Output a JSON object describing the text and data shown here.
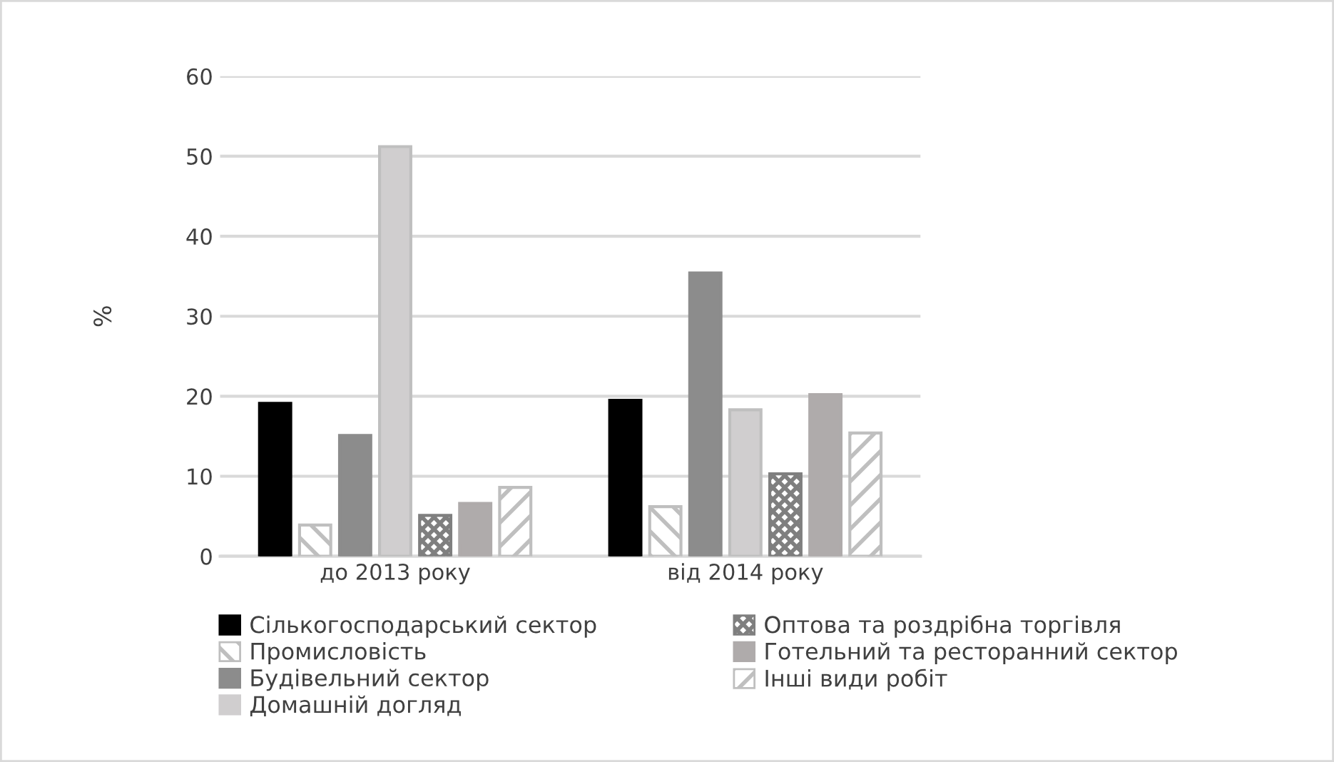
{
  "chart_data": {
    "type": "bar",
    "ylabel": "%",
    "categories": [
      "до 2013 року",
      "від 2014 року"
    ],
    "series": [
      {
        "name": "Сількогосподарський сектор",
        "color": "#000000",
        "values": [
          19.1,
          19.5
        ]
      },
      {
        "name": "Промисловість",
        "color": "#bfbfbf",
        "values": [
          3.9,
          6.2
        ]
      },
      {
        "name": "Будівельний сектор",
        "color": "#8c8c8c",
        "values": [
          15.1,
          35.4
        ]
      },
      {
        "name": "Домашній догляд",
        "color": "#d0cecf",
        "values": [
          51.2,
          18.3
        ]
      },
      {
        "name": "Оптова та роздрібна торгівля",
        "color": "#7f7f7f",
        "values": [
          5.1,
          10.3
        ]
      },
      {
        "name": "Готельний та ресторанний сектор",
        "color": "#afabab",
        "values": [
          6.6,
          20.2
        ]
      },
      {
        "name": "Інші види робіт",
        "color": "#bfbfbf",
        "values": [
          8.6,
          15.4
        ]
      }
    ],
    "ylim": [
      0,
      60
    ],
    "yticks": [
      0,
      10,
      20,
      30,
      40,
      50,
      60
    ],
    "grid": "y",
    "legend": "bottom"
  }
}
